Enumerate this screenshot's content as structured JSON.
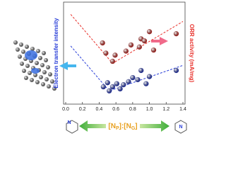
{
  "chart_data": {
    "type": "scatter",
    "x_label_parts": [
      "[N",
      "P",
      "]:[N",
      "G",
      "]"
    ],
    "y_label": "Electron transfer intensity",
    "y2_label": "ORR activity (mA/mg)",
    "icon_labels": [
      "N",
      "N"
    ],
    "xlim": [
      0,
      1.4
    ],
    "xticks": [
      {
        "value": 0,
        "label": "0.0"
      },
      {
        "value": 0.2,
        "label": "0.2"
      },
      {
        "value": 0.4,
        "label": "0.4"
      },
      {
        "value": 0.6,
        "label": "0.6"
      },
      {
        "value": 0.8,
        "label": "0.8"
      },
      {
        "value": 1.0,
        "label": "1.0"
      },
      {
        "value": 1.2,
        "label": "1.2"
      },
      {
        "value": 1.4,
        "label": "1.4"
      }
    ],
    "ylim": [
      0,
      100
    ],
    "series": [
      {
        "color": "#e8302a",
        "x": [
          0.44,
          0.48,
          0.56,
          0.59,
          0.72,
          0.78,
          0.88,
          0.9,
          0.94,
          1.0,
          1.05,
          1.32
        ],
        "values": [
          60,
          50,
          42,
          48,
          52,
          58,
          56,
          64,
          62,
          71,
          53,
          69
        ]
      },
      {
        "color": "#2a3fd8",
        "x": [
          0.45,
          0.5,
          0.52,
          0.56,
          0.61,
          0.65,
          0.69,
          0.75,
          0.8,
          0.86,
          0.9,
          0.96,
          1.0,
          1.32
        ],
        "values": [
          17,
          21,
          13,
          17,
          20,
          15,
          19,
          22,
          26,
          24,
          33,
          20,
          27,
          33
        ]
      }
    ],
    "trend_lines": [
      {
        "color": "#e8302a",
        "x": [
          0.06,
          0.56,
          1.4
        ],
        "values": [
          88,
          40,
          81
        ]
      },
      {
        "color": "#2a3fd8",
        "x": [
          0.06,
          0.52,
          1.4
        ],
        "values": [
          57,
          13,
          38
        ]
      }
    ]
  }
}
